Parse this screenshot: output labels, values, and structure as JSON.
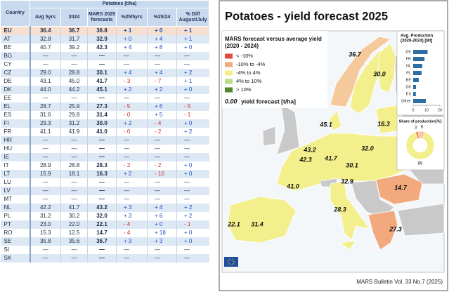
{
  "table": {
    "group_header": "Potatoes (t/ha)",
    "columns": [
      "Country",
      "Avg 5yrs",
      "2024",
      "MARS 2025 forecasts",
      "%25/5yrs",
      "%25/24",
      "% Diff August/July"
    ],
    "rows": [
      [
        "EU",
        "36.4",
        "36.7",
        "36.8",
        "+ 1",
        "+ 0",
        "+ 1"
      ],
      [
        "AT",
        "32.8",
        "31.7",
        "32.9",
        "+ 0",
        "+ 4",
        "+ 1"
      ],
      [
        "BE",
        "40.7",
        "39.2",
        "42.3",
        "+ 4",
        "+ 8",
        "+ 0"
      ],
      [
        "BG",
        "—",
        "—",
        "—",
        "—",
        "—",
        "—"
      ],
      [
        "CY",
        "—",
        "—",
        "—",
        "—",
        "—",
        "—"
      ],
      [
        "CZ",
        "29.0",
        "28.8",
        "30.1",
        "+ 4",
        "+ 4",
        "+ 2"
      ],
      [
        "DE",
        "43.1",
        "45.0",
        "41.7",
        "- 3",
        "- 7",
        "+ 1"
      ],
      [
        "DK",
        "44.0",
        "44.2",
        "45.1",
        "+ 2",
        "+ 2",
        "+ 0"
      ],
      [
        "EE",
        "—",
        "—",
        "—",
        "—",
        "—",
        "—"
      ],
      [
        "EL",
        "28.7",
        "25.9",
        "27.3",
        "- 5",
        "+ 6",
        "- 5"
      ],
      [
        "ES",
        "31.6",
        "29.8",
        "31.4",
        "- 0",
        "+ 5",
        "- 1"
      ],
      [
        "FI",
        "29.3",
        "31.2",
        "30.0",
        "+ 2",
        "- 4",
        "+ 0"
      ],
      [
        "FR",
        "41.1",
        "41.9",
        "41.0",
        "- 0",
        "- 2",
        "+ 2"
      ],
      [
        "HR",
        "—",
        "—",
        "—",
        "—",
        "—",
        "—"
      ],
      [
        "HU",
        "—",
        "—",
        "—",
        "—",
        "—",
        "—"
      ],
      [
        "IE",
        "—",
        "—",
        "—",
        "—",
        "—",
        "—"
      ],
      [
        "IT",
        "28.9",
        "28.8",
        "28.3",
        "- 2",
        "- 2",
        "+ 0"
      ],
      [
        "LT",
        "15.9",
        "18.1",
        "16.3",
        "+ 2",
        "- 10",
        "+ 0"
      ],
      [
        "LU",
        "—",
        "—",
        "—",
        "—",
        "—",
        "—"
      ],
      [
        "LV",
        "—",
        "—",
        "—",
        "—",
        "—",
        "—"
      ],
      [
        "MT",
        "—",
        "—",
        "—",
        "—",
        "—",
        "—"
      ],
      [
        "NL",
        "42.2",
        "41.7",
        "43.2",
        "+ 3",
        "+ 4",
        "+ 2"
      ],
      [
        "PL",
        "31.2",
        "30.2",
        "32.0",
        "+ 3",
        "+ 6",
        "+ 2"
      ],
      [
        "PT",
        "23.0",
        "22.0",
        "22.1",
        "- 4",
        "+ 0",
        "- 1"
      ],
      [
        "RO",
        "15.3",
        "12.5",
        "14.7",
        "- 4",
        "+ 18",
        "+ 0"
      ],
      [
        "SE",
        "35.8",
        "35.6",
        "36.7",
        "+ 3",
        "+ 3",
        "+ 0"
      ],
      [
        "SI",
        "—",
        "—",
        "—",
        "—",
        "—",
        "—"
      ],
      [
        "SK",
        "—",
        "—",
        "—",
        "—",
        "—",
        "—"
      ]
    ]
  },
  "map": {
    "title": "Potatoes - yield forecast 2025",
    "legend": {
      "title": [
        "MARS forecast versus average yield",
        "(2020 - 2024)"
      ],
      "items": [
        {
          "label": "< -10%",
          "color": "#e04a3f"
        },
        {
          "label": "-10% to -4%",
          "color": "#f3a97e"
        },
        {
          "label": "-4% to 4%",
          "color": "#f3ef8c"
        },
        {
          "label": "4% to 10%",
          "color": "#b9de8a"
        },
        {
          "label": "> 10%",
          "color": "#4e8a2c"
        }
      ],
      "sample_value": "0.00",
      "sample_label": "yield forecast [t/ha]"
    },
    "labels": [
      "36.7",
      "30.0",
      "16.3",
      "45.1",
      "43.2",
      "42.3",
      "41.7",
      "32.0",
      "30.1",
      "41.0",
      "32.9",
      "14.7",
      "28.3",
      "22.1",
      "31.4",
      "27.3"
    ],
    "production_chart": {
      "type": "bar",
      "title": [
        "Avg. Production",
        "(2020-2024) [Mt]"
      ],
      "categories": [
        "DE",
        "FR",
        "NL",
        "PL",
        "BE",
        "DK",
        "ES",
        "Other"
      ],
      "values": [
        10.8,
        8.5,
        6.8,
        6.3,
        4.2,
        2.1,
        2.0,
        9.5
      ],
      "color": "#2e6da4",
      "xlim": [
        0,
        20
      ],
      "xticks": [
        0,
        10,
        20
      ]
    },
    "share_chart": {
      "type": "pie",
      "title": "Share of production[%]",
      "values": [
        3,
        8,
        89
      ],
      "colors": [
        "#e88a5a",
        "#f5c99c",
        "#f3ef8c"
      ]
    },
    "footer": "MARS Bulletin Vol. 33 No.7 (2025)"
  }
}
